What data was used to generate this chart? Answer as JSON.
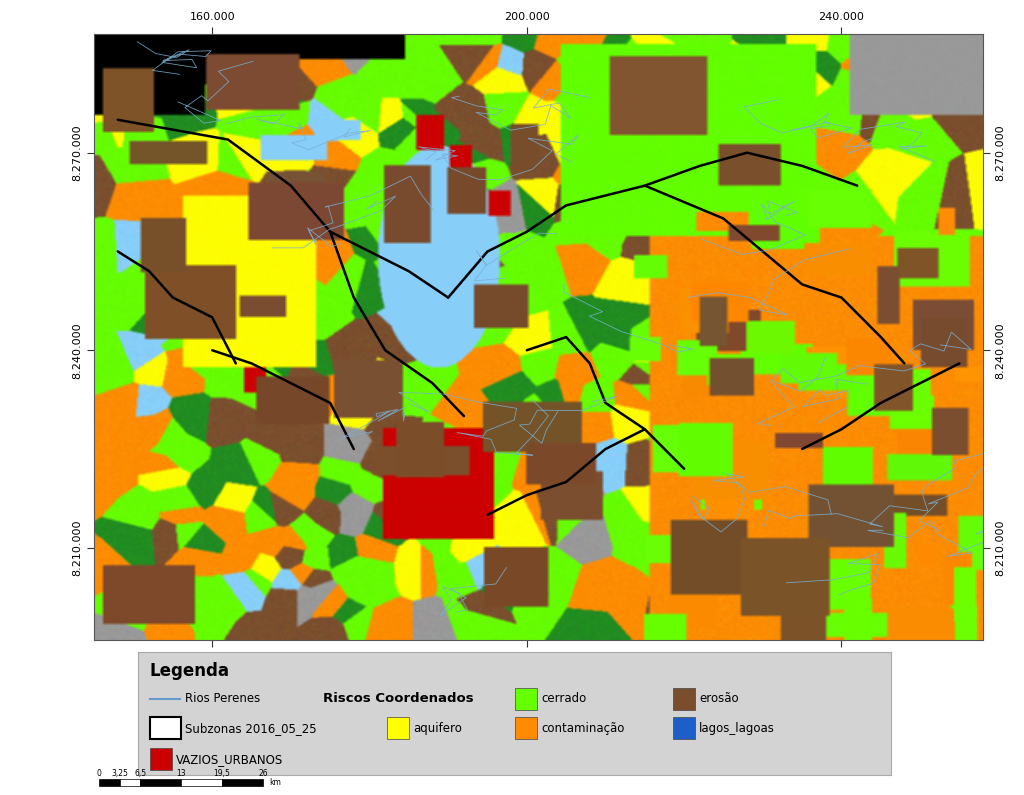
{
  "fig_width": 10.24,
  "fig_height": 7.95,
  "dpi": 100,
  "fig_bg_color": "#ffffff",
  "map_bg_color": "#000000",
  "legend_bg_color": "#d3d3d3",
  "legend_title": "Legenda",
  "legend_title_fontsize": 12,
  "x_ticks": [
    160000,
    200000,
    240000
  ],
  "y_ticks": [
    8210000,
    8240000,
    8270000
  ],
  "x_tick_labels": [
    "160.000",
    "200.000",
    "240.000"
  ],
  "y_tick_labels": [
    "8.210.000",
    "8.240.000",
    "8.270.000"
  ],
  "tick_fontsize": 8,
  "map_xlim": [
    145000,
    258000
  ],
  "map_ylim": [
    8196000,
    8288000
  ],
  "map_colors": {
    "cerrado": [
      0.4,
      1.0,
      0.0
    ],
    "aquifero": [
      1.0,
      1.0,
      0.0
    ],
    "contaminacao": [
      1.0,
      0.55,
      0.0
    ],
    "erosao": [
      0.48,
      0.31,
      0.18
    ],
    "lake": [
      0.53,
      0.81,
      0.98
    ],
    "dark_green": [
      0.13,
      0.55,
      0.13
    ],
    "vazios": [
      0.8,
      0.0,
      0.0
    ],
    "gray": [
      0.6,
      0.6,
      0.6
    ]
  },
  "legend_line_color": "#6699cc",
  "legend_cerrado": "#66ff00",
  "legend_erosao": "#7a4e2d",
  "legend_aquifero": "#ffff00",
  "legend_contaminacao": "#ff8c00",
  "legend_lagos": "#1e5ec8",
  "legend_vazios": "#cc0000",
  "scalebar_ticks": [
    "0",
    "3,25",
    "6,5",
    "13",
    "19,5",
    "26"
  ],
  "scalebar_unit": "km"
}
